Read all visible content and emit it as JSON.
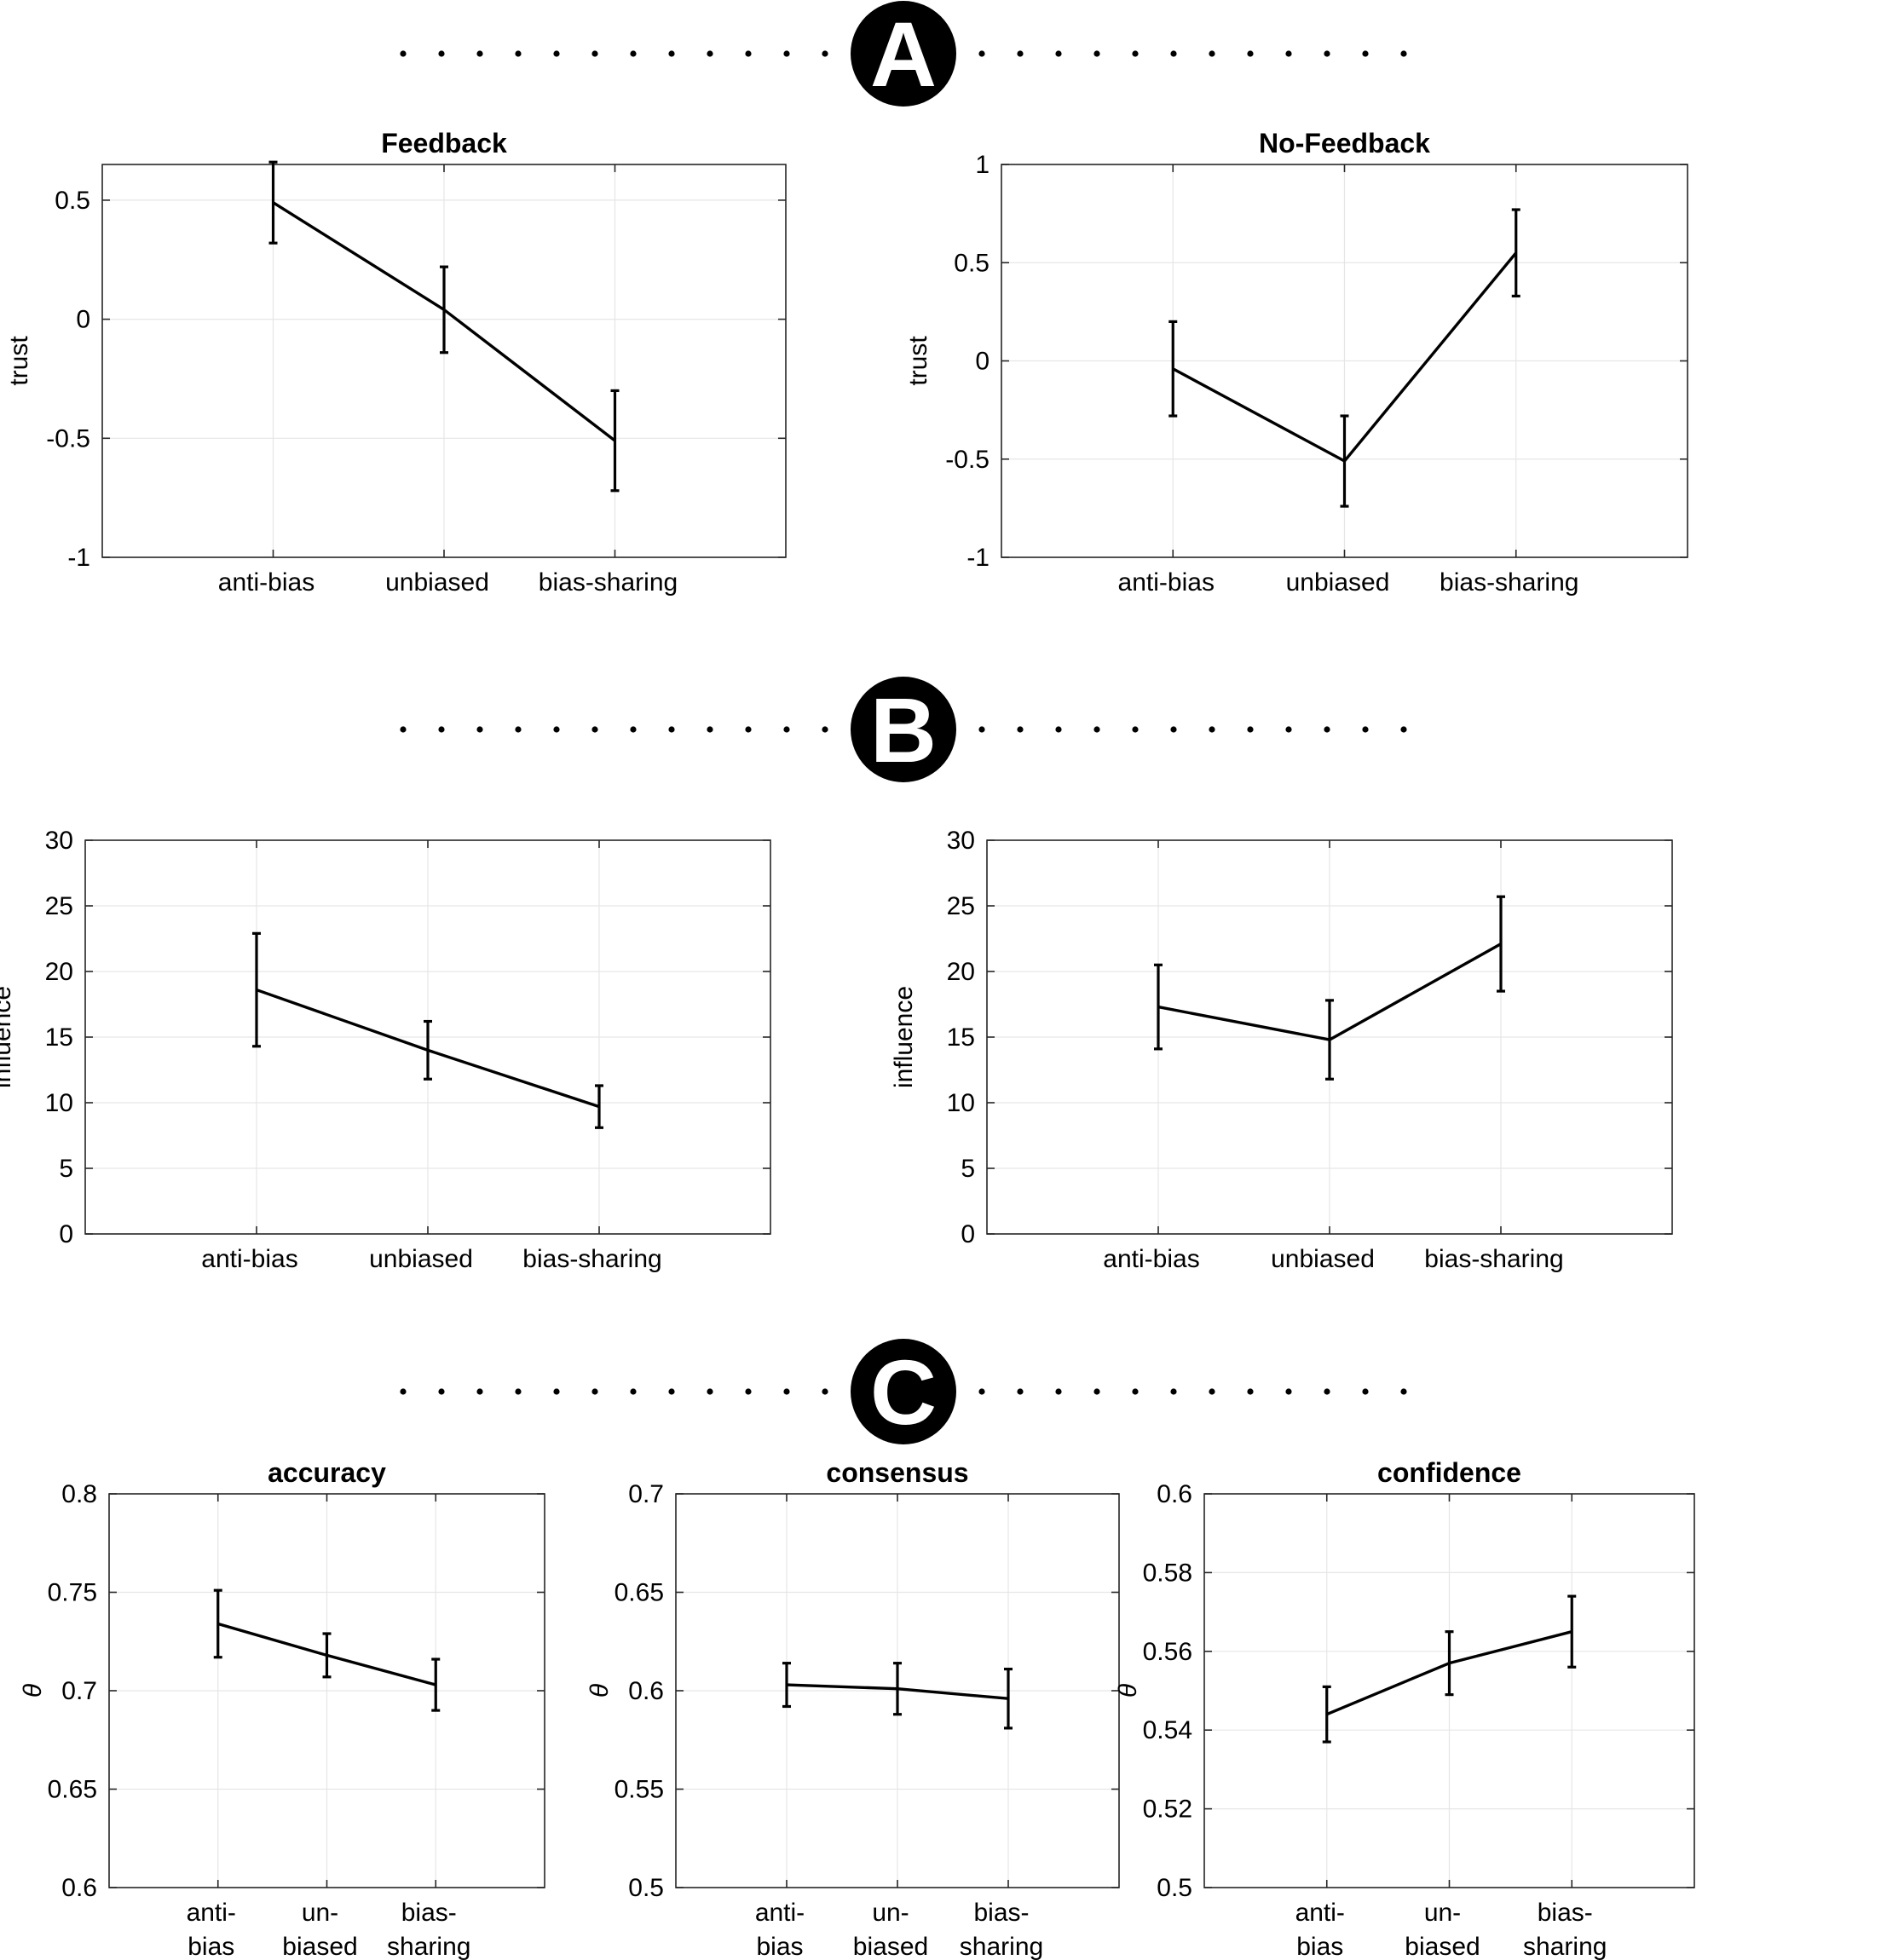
{
  "sections": [
    {
      "label": "A"
    },
    {
      "label": "B"
    },
    {
      "label": "C"
    }
  ],
  "chart_data": [
    {
      "id": "A-feedback",
      "type": "line",
      "title": "Feedback",
      "xlabel": "",
      "ylabel": "trust",
      "categories": [
        "anti-bias",
        "unbiased",
        "bias-sharing"
      ],
      "values": [
        0.49,
        0.04,
        -0.51
      ],
      "errors": [
        0.17,
        0.18,
        0.21
      ],
      "ylim": [
        -1,
        0.65
      ],
      "xlim": [
        0,
        4
      ],
      "yticks": [
        -1,
        -0.5,
        0,
        0.5
      ],
      "ytick_labels": [
        "-1",
        "-0.5",
        "0",
        "0.5"
      ],
      "grid": true
    },
    {
      "id": "A-nofeedback",
      "type": "line",
      "title": "No-Feedback",
      "xlabel": "",
      "ylabel": "trust",
      "categories": [
        "anti-bias",
        "unbiased",
        "bias-sharing"
      ],
      "values": [
        -0.04,
        -0.51,
        0.55
      ],
      "errors": [
        0.24,
        0.23,
        0.22
      ],
      "ylim": [
        -1,
        1
      ],
      "xlim": [
        0,
        4
      ],
      "yticks": [
        -1,
        -0.5,
        0,
        0.5,
        1
      ],
      "ytick_labels": [
        "-1",
        "-0.5",
        "0",
        "0.5",
        "1"
      ],
      "grid": true
    },
    {
      "id": "B-left",
      "type": "line",
      "title": "",
      "xlabel": "",
      "ylabel": "influence",
      "categories": [
        "anti-bias",
        "unbiased",
        "bias-sharing"
      ],
      "values": [
        18.6,
        14.0,
        9.7
      ],
      "errors": [
        4.3,
        2.2,
        1.6
      ],
      "ylim": [
        0,
        30
      ],
      "xlim": [
        0,
        4
      ],
      "yticks": [
        0,
        5,
        10,
        15,
        20,
        25,
        30
      ],
      "ytick_labels": [
        "0",
        "5",
        "10",
        "15",
        "20",
        "25",
        "30"
      ],
      "grid": true
    },
    {
      "id": "B-right",
      "type": "line",
      "title": "",
      "xlabel": "",
      "ylabel": "influence",
      "categories": [
        "anti-bias",
        "unbiased",
        "bias-sharing"
      ],
      "values": [
        17.3,
        14.8,
        22.1
      ],
      "errors": [
        3.2,
        3.0,
        3.6
      ],
      "ylim": [
        0,
        30
      ],
      "xlim": [
        0,
        4
      ],
      "yticks": [
        0,
        5,
        10,
        15,
        20,
        25,
        30
      ],
      "ytick_labels": [
        "0",
        "5",
        "10",
        "15",
        "20",
        "25",
        "30"
      ],
      "grid": true
    },
    {
      "id": "C-accuracy",
      "type": "line",
      "title": "accuracy",
      "xlabel": "",
      "ylabel": "θ",
      "categories": [
        "anti-\nbias",
        "un-\nbiased",
        "bias-\nsharing"
      ],
      "values": [
        0.734,
        0.718,
        0.703
      ],
      "errors": [
        0.017,
        0.011,
        0.013
      ],
      "ylim": [
        0.6,
        0.8
      ],
      "xlim": [
        0,
        4
      ],
      "yticks": [
        0.6,
        0.65,
        0.7,
        0.75,
        0.8
      ],
      "ytick_labels": [
        "0.6",
        "0.65",
        "0.7",
        "0.75",
        "0.8"
      ],
      "grid": true
    },
    {
      "id": "C-consensus",
      "type": "line",
      "title": "consensus",
      "xlabel": "",
      "ylabel": "θ",
      "categories": [
        "anti-\nbias",
        "un-\nbiased",
        "bias-\nsharing"
      ],
      "values": [
        0.603,
        0.601,
        0.596
      ],
      "errors": [
        0.011,
        0.013,
        0.015
      ],
      "ylim": [
        0.5,
        0.7
      ],
      "xlim": [
        0,
        4
      ],
      "yticks": [
        0.5,
        0.55,
        0.6,
        0.65,
        0.7
      ],
      "ytick_labels": [
        "0.5",
        "0.55",
        "0.6",
        "0.65",
        "0.7"
      ],
      "grid": true
    },
    {
      "id": "C-confidence",
      "type": "line",
      "title": "confidence",
      "xlabel": "",
      "ylabel": "θ",
      "categories": [
        "anti-\nbias",
        "un-\nbiased",
        "bias-\nsharing"
      ],
      "values": [
        0.544,
        0.557,
        0.565
      ],
      "errors": [
        0.007,
        0.008,
        0.009
      ],
      "ylim": [
        0.5,
        0.6
      ],
      "xlim": [
        0,
        4
      ],
      "yticks": [
        0.5,
        0.52,
        0.54,
        0.56,
        0.58,
        0.6
      ],
      "ytick_labels": [
        "0.5",
        "0.52",
        "0.54",
        "0.56",
        "0.58",
        "0.6"
      ],
      "grid": true
    }
  ]
}
